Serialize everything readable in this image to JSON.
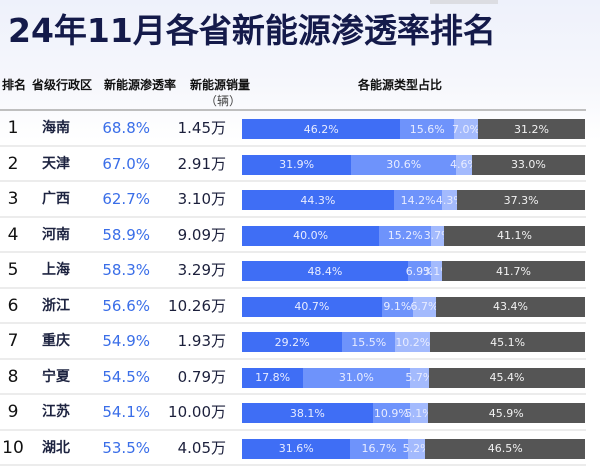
{
  "title": "24年11月各省新能源渗透率排名",
  "header": {
    "rank": "排名",
    "province": "省级行政区",
    "rate": "新能源渗透率",
    "sales": "新能源销量",
    "sales_unit": "（辆）",
    "share": "各能源类型占比"
  },
  "colors": {
    "seg1": "#3f6ef5",
    "seg2": "#6e93fb",
    "seg3": "#a3bafd",
    "seg4": "#555555",
    "rate_text": "#3a6ee8",
    "title": "#141a4a"
  },
  "rows": [
    {
      "rank": "1",
      "province": "海南",
      "rate": "68.8%",
      "sales": "1.45万",
      "segs": [
        {
          "v": 46.2,
          "label": "46.2%"
        },
        {
          "v": 15.6,
          "label": "15.6%"
        },
        {
          "v": 7.0,
          "label": "7.0%"
        },
        {
          "v": 31.2,
          "label": "31.2%"
        }
      ]
    },
    {
      "rank": "2",
      "province": "天津",
      "rate": "67.0%",
      "sales": "2.91万",
      "segs": [
        {
          "v": 31.9,
          "label": "31.9%"
        },
        {
          "v": 30.6,
          "label": "30.6%"
        },
        {
          "v": 4.6,
          "label": "4.6%"
        },
        {
          "v": 33.0,
          "label": "33.0%"
        }
      ]
    },
    {
      "rank": "3",
      "province": "广西",
      "rate": "62.7%",
      "sales": "3.10万",
      "segs": [
        {
          "v": 44.3,
          "label": "44.3%"
        },
        {
          "v": 14.2,
          "label": "14.2%"
        },
        {
          "v": 4.3,
          "label": "4.3%"
        },
        {
          "v": 37.3,
          "label": "37.3%"
        }
      ]
    },
    {
      "rank": "4",
      "province": "河南",
      "rate": "58.9%",
      "sales": "9.09万",
      "segs": [
        {
          "v": 40.0,
          "label": "40.0%"
        },
        {
          "v": 15.2,
          "label": "15.2%"
        },
        {
          "v": 3.7,
          "label": "3.7%"
        },
        {
          "v": 41.1,
          "label": "41.1%"
        }
      ]
    },
    {
      "rank": "5",
      "province": "上海",
      "rate": "58.3%",
      "sales": "3.29万",
      "segs": [
        {
          "v": 48.4,
          "label": "48.4%"
        },
        {
          "v": 6.9,
          "label": "6.9%"
        },
        {
          "v": 3.1,
          "label": "3.1%"
        },
        {
          "v": 41.7,
          "label": "41.7%"
        }
      ]
    },
    {
      "rank": "6",
      "province": "浙江",
      "rate": "56.6%",
      "sales": "10.26万",
      "segs": [
        {
          "v": 40.7,
          "label": "40.7%"
        },
        {
          "v": 9.1,
          "label": "9.1%"
        },
        {
          "v": 6.7,
          "label": "6.7%"
        },
        {
          "v": 43.4,
          "label": "43.4%"
        }
      ]
    },
    {
      "rank": "7",
      "province": "重庆",
      "rate": "54.9%",
      "sales": "1.93万",
      "segs": [
        {
          "v": 29.2,
          "label": "29.2%"
        },
        {
          "v": 15.5,
          "label": "15.5%"
        },
        {
          "v": 10.2,
          "label": "10.2%"
        },
        {
          "v": 45.1,
          "label": "45.1%"
        }
      ]
    },
    {
      "rank": "8",
      "province": "宁夏",
      "rate": "54.5%",
      "sales": "0.79万",
      "segs": [
        {
          "v": 17.8,
          "label": "17.8%"
        },
        {
          "v": 31.0,
          "label": "31.0%"
        },
        {
          "v": 5.7,
          "label": "5.7%"
        },
        {
          "v": 45.4,
          "label": "45.4%"
        }
      ]
    },
    {
      "rank": "9",
      "province": "江苏",
      "rate": "54.1%",
      "sales": "10.00万",
      "segs": [
        {
          "v": 38.1,
          "label": "38.1%"
        },
        {
          "v": 10.9,
          "label": "10.9%"
        },
        {
          "v": 5.1,
          "label": "5.1%"
        },
        {
          "v": 45.9,
          "label": "45.9%"
        }
      ]
    },
    {
      "rank": "10",
      "province": "湖北",
      "rate": "53.5%",
      "sales": "4.05万",
      "segs": [
        {
          "v": 31.6,
          "label": "31.6%"
        },
        {
          "v": 16.7,
          "label": "16.7%"
        },
        {
          "v": 5.2,
          "label": "5.2%"
        },
        {
          "v": 46.5,
          "label": "46.5%"
        }
      ]
    }
  ],
  "chart_data": {
    "type": "table",
    "title": "24年11月各省新能源渗透率排名",
    "columns": [
      "排名",
      "省级行政区",
      "新能源渗透率",
      "新能源销量（辆）",
      "各能源类型占比"
    ],
    "categories": [
      "海南",
      "天津",
      "广西",
      "河南",
      "上海",
      "浙江",
      "重庆",
      "宁夏",
      "江苏",
      "湖北"
    ],
    "penetration_rate": [
      68.8,
      67.0,
      62.7,
      58.9,
      58.3,
      56.6,
      54.9,
      54.5,
      54.1,
      53.5
    ],
    "sales_wan": [
      1.45,
      2.91,
      3.1,
      9.09,
      3.29,
      10.26,
      1.93,
      0.79,
      10.0,
      4.05
    ],
    "stacked_bar": {
      "type": "bar",
      "orientation": "horizontal",
      "stacked": true,
      "legend": [],
      "series": [
        {
          "name": "segment_1",
          "color": "#3f6ef5",
          "values": [
            46.2,
            31.9,
            44.3,
            40.0,
            48.4,
            40.7,
            29.2,
            17.8,
            38.1,
            31.6
          ]
        },
        {
          "name": "segment_2",
          "color": "#6e93fb",
          "values": [
            15.6,
            30.6,
            14.2,
            15.2,
            6.9,
            9.1,
            15.5,
            31.0,
            10.9,
            16.7
          ]
        },
        {
          "name": "segment_3",
          "color": "#a3bafd",
          "values": [
            7.0,
            4.6,
            4.3,
            3.7,
            3.1,
            6.7,
            10.2,
            5.7,
            5.1,
            5.2
          ]
        },
        {
          "name": "segment_4",
          "color": "#555555",
          "values": [
            31.2,
            33.0,
            37.3,
            41.1,
            41.7,
            43.4,
            45.1,
            45.4,
            45.9,
            46.5
          ]
        }
      ],
      "xlim": [
        0,
        100
      ]
    }
  }
}
